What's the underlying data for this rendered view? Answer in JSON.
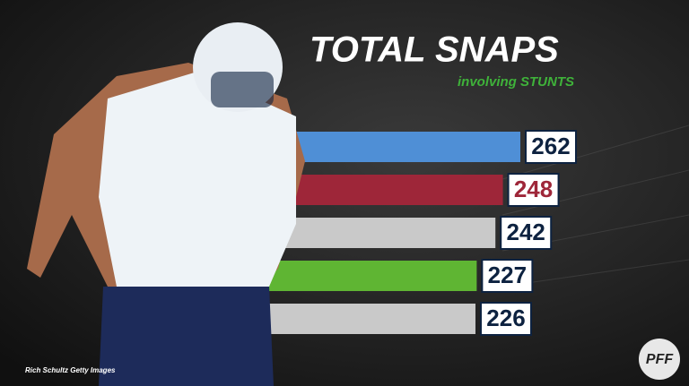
{
  "chart_data": {
    "type": "bar",
    "title": "TOTAL SNAPS",
    "subtitle": "involving STUNTS",
    "categories": [
      null,
      null,
      null,
      null,
      null
    ],
    "values": [
      262,
      248,
      242,
      227,
      226
    ],
    "colors": [
      "#4f8fd6",
      "#9e2639",
      "#c9c9c9",
      "#5fb533",
      "#c9c9c9"
    ],
    "label_colors": [
      "#0d2240",
      "#9e2639",
      "#0d2240",
      "#0d2240",
      "#0d2240"
    ],
    "credit": "Rich Schultz Getty Images",
    "logo": "PFF"
  }
}
